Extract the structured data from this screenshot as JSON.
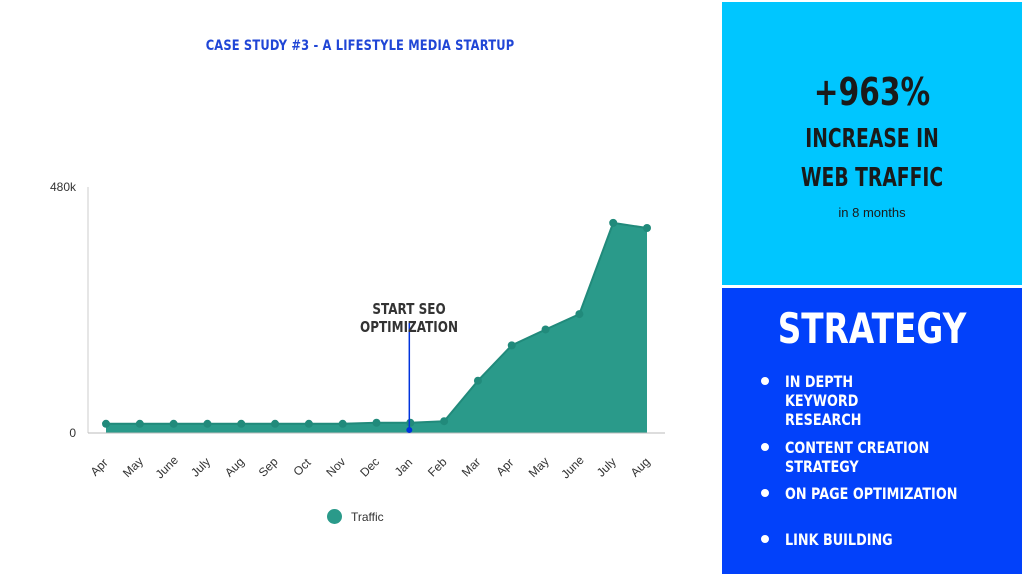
{
  "chart_data": {
    "type": "area",
    "title": "CASE STUDY #3 - A LIFESTYLE MEDIA STARTUP",
    "categories": [
      "Apr",
      "May",
      "June",
      "July",
      "Aug",
      "Sep",
      "Oct",
      "Nov",
      "Dec",
      "Jan",
      "Feb",
      "Mar",
      "Apr",
      "May",
      "June",
      "July",
      "Aug"
    ],
    "series": [
      {
        "name": "Traffic",
        "values": [
          18000,
          18000,
          18000,
          18000,
          18000,
          18000,
          18000,
          18000,
          20000,
          20000,
          23000,
          102000,
          171000,
          202000,
          232000,
          410000,
          400000
        ]
      }
    ],
    "ylim": [
      0,
      480000
    ],
    "y_tick_labels": [
      "0",
      "480k"
    ],
    "annotation": {
      "text": "START SEO OPTIMIZATION",
      "category_index": 9
    },
    "legend_position": "bottom",
    "color": "#2a9a8a"
  },
  "highlight": {
    "value": "+963%",
    "line1": "INCREASE IN",
    "line2": "WEB TRAFFIC",
    "subtext": "in 8 months"
  },
  "strategy": {
    "title": "STRATEGY",
    "items": [
      "IN DEPTH KEYWORD RESEARCH",
      "CONTENT CREATION STRATEGY",
      "ON PAGE OPTIMIZATION",
      "LINK BUILDING"
    ]
  },
  "colors": {
    "title": "#2046d6",
    "top_panel": "#00c6ff",
    "bottom_panel": "#0241fa",
    "annotation_line": "#0033dd"
  }
}
